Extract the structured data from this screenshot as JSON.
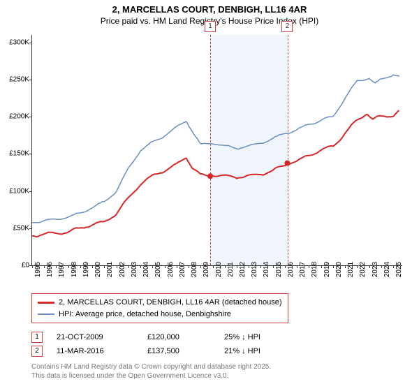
{
  "title_line1": "2, MARCELLAS COURT, DENBIGH, LL16 4AR",
  "title_line2": "Price paid vs. HM Land Registry's House Price Index (HPI)",
  "chart": {
    "type": "line",
    "background_color": "#ffffff",
    "highlight_band_color": "#f0f4fb",
    "highlight_border_color": "#d04040",
    "axis_color": "#333333",
    "label_fontsize": 10,
    "title_fontsize": 13,
    "x": {
      "min": 1995,
      "max": 2025.75,
      "ticks": [
        1995,
        1996,
        1997,
        1998,
        1999,
        2000,
        2001,
        2002,
        2003,
        2004,
        2005,
        2006,
        2007,
        2008,
        2009,
        2010,
        2011,
        2012,
        2013,
        2014,
        2015,
        2016,
        2017,
        2018,
        2019,
        2020,
        2021,
        2022,
        2023,
        2024,
        2025
      ]
    },
    "y": {
      "min": 0,
      "max": 310000,
      "ticks": [
        {
          "v": 0,
          "label": "£0"
        },
        {
          "v": 50000,
          "label": "£50K"
        },
        {
          "v": 100000,
          "label": "£100K"
        },
        {
          "v": 150000,
          "label": "£150K"
        },
        {
          "v": 200000,
          "label": "£200K"
        },
        {
          "v": 250000,
          "label": "£250K"
        },
        {
          "v": 300000,
          "label": "£300K"
        }
      ]
    },
    "highlight_band": {
      "x_start": 2009.8,
      "x_end": 2016.2
    },
    "series": [
      {
        "name": "price_paid",
        "label": "2, MARCELLAS COURT, DENBIGH, LL16 4AR (detached house)",
        "color": "#d62728",
        "line_width": 2,
        "points": [
          [
            1995,
            40000
          ],
          [
            1996,
            42000
          ],
          [
            1997,
            43000
          ],
          [
            1998,
            45000
          ],
          [
            1999,
            50000
          ],
          [
            2000,
            55000
          ],
          [
            2001,
            58000
          ],
          [
            2002,
            70000
          ],
          [
            2003,
            90000
          ],
          [
            2004,
            110000
          ],
          [
            2005,
            120000
          ],
          [
            2006,
            128000
          ],
          [
            2007,
            135000
          ],
          [
            2007.8,
            146000
          ],
          [
            2008.3,
            132000
          ],
          [
            2009,
            121000
          ],
          [
            2009.8,
            120000
          ],
          [
            2010,
            122000
          ],
          [
            2011,
            120000
          ],
          [
            2012,
            119000
          ],
          [
            2013,
            120000
          ],
          [
            2014,
            123000
          ],
          [
            2015,
            127000
          ],
          [
            2016,
            135000
          ],
          [
            2016.2,
            137500
          ],
          [
            2017,
            140000
          ],
          [
            2018,
            148000
          ],
          [
            2019,
            155000
          ],
          [
            2020,
            160000
          ],
          [
            2021,
            178000
          ],
          [
            2022,
            195000
          ],
          [
            2022.8,
            205000
          ],
          [
            2023.3,
            196000
          ],
          [
            2024,
            200000
          ],
          [
            2025,
            202000
          ],
          [
            2025.5,
            208000
          ]
        ]
      },
      {
        "name": "hpi",
        "label": "HPI: Average price, detached house, Denbighshire",
        "color": "#6b8ec4",
        "line_width": 1.5,
        "points": [
          [
            1995,
            58000
          ],
          [
            1996,
            60000
          ],
          [
            1997,
            62000
          ],
          [
            1998,
            65000
          ],
          [
            1999,
            70000
          ],
          [
            2000,
            78000
          ],
          [
            2001,
            85000
          ],
          [
            2002,
            100000
          ],
          [
            2003,
            130000
          ],
          [
            2004,
            155000
          ],
          [
            2005,
            165000
          ],
          [
            2006,
            175000
          ],
          [
            2007,
            185000
          ],
          [
            2007.8,
            195000
          ],
          [
            2008.5,
            175000
          ],
          [
            2009,
            162000
          ],
          [
            2010,
            165000
          ],
          [
            2011,
            160000
          ],
          [
            2012,
            158000
          ],
          [
            2013,
            160000
          ],
          [
            2014,
            165000
          ],
          [
            2015,
            170000
          ],
          [
            2016,
            178000
          ],
          [
            2017,
            182000
          ],
          [
            2018,
            190000
          ],
          [
            2019,
            195000
          ],
          [
            2020,
            200000
          ],
          [
            2021,
            225000
          ],
          [
            2022,
            248000
          ],
          [
            2023,
            252000
          ],
          [
            2023.5,
            244000
          ],
          [
            2024,
            250000
          ],
          [
            2025,
            257000
          ],
          [
            2025.5,
            254000
          ]
        ]
      }
    ],
    "markers": [
      {
        "n": "1",
        "x": 2009.8,
        "y": 120000
      },
      {
        "n": "2",
        "x": 2016.2,
        "y": 137500
      }
    ]
  },
  "legend": {
    "series1": "2, MARCELLAS COURT, DENBIGH, LL16 4AR (detached house)",
    "series2": "HPI: Average price, detached house, Denbighshire"
  },
  "transactions": [
    {
      "n": "1",
      "date": "21-OCT-2009",
      "price": "£120,000",
      "hpi_diff": "25% ↓ HPI"
    },
    {
      "n": "2",
      "date": "11-MAR-2016",
      "price": "£137,500",
      "hpi_diff": "21% ↓ HPI"
    }
  ],
  "footer_line1": "Contains HM Land Registry data © Crown copyright and database right 2025.",
  "footer_line2": "This data is licensed under the Open Government Licence v3.0.",
  "colors": {
    "series1": "#d62728",
    "series2": "#6b8ec4",
    "footer_text": "#777777"
  }
}
